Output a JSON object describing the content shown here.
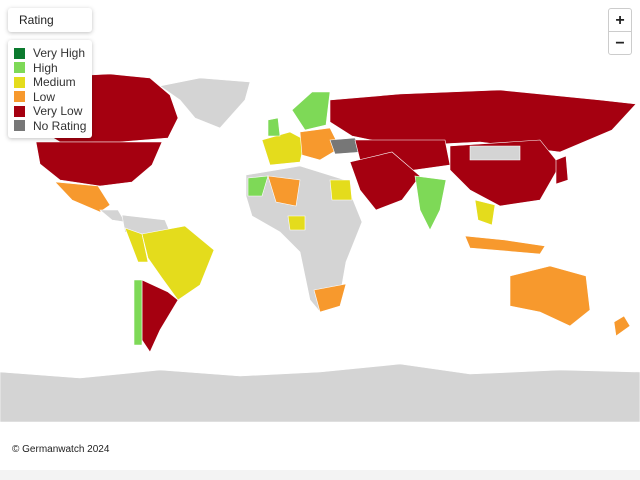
{
  "legend": {
    "title": "Rating",
    "items": [
      {
        "label": "Very High",
        "color": "#0b7a2e"
      },
      {
        "label": "High",
        "color": "#7ed957"
      },
      {
        "label": "Medium",
        "color": "#e4dc1c"
      },
      {
        "label": "Low",
        "color": "#f7992d"
      },
      {
        "label": "Very Low",
        "color": "#a50010"
      },
      {
        "label": "No Rating",
        "color": "#777777"
      }
    ]
  },
  "zoom": {
    "in": "+",
    "out": "−"
  },
  "credit": "© Germanwatch 2024"
}
